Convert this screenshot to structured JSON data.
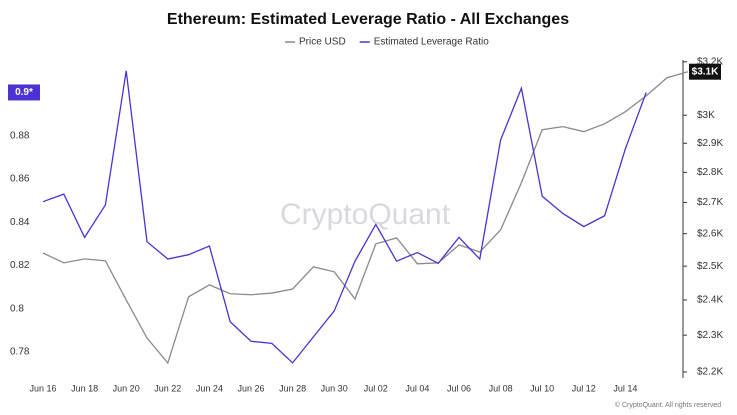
{
  "chart_data": {
    "type": "line",
    "title": "Ethereum: Estimated Leverage Ratio - All Exchanges",
    "watermark": "CryptoQuant",
    "footer": "© CryptoQuant. All rights reserved",
    "categories": [
      "Jun 16",
      null,
      "Jun 18",
      null,
      "Jun 20",
      null,
      "Jun 22",
      null,
      "Jun 24",
      null,
      "Jun 26",
      null,
      "Jun 28",
      null,
      "Jun 30",
      null,
      "Jul 02",
      null,
      "Jul 04",
      null,
      "Jul 06",
      null,
      "Jul 08",
      null,
      "Jul 10",
      null,
      "Jul 12",
      null,
      "Jul 14",
      null,
      null,
      null
    ],
    "series": [
      {
        "name": "Price USD",
        "color": "#8a8a8a",
        "axis": "y2",
        "current_label": "$3.1K",
        "current_color": "#111111",
        "values": [
          2540,
          2510,
          2522,
          2516,
          2400,
          2292,
          2224,
          2409,
          2444,
          2418,
          2415,
          2420,
          2432,
          2498,
          2483,
          2403,
          2568,
          2587,
          2507,
          2510,
          2565,
          2543,
          2612,
          2765,
          2948,
          2959,
          2941,
          2969,
          3013,
          3071,
          3139,
          3162
        ]
      },
      {
        "name": "Estimated Leverage Ratio",
        "color": "#4b32d4",
        "current_label": "0.9*",
        "current_color": "#4b32d4",
        "values": [
          0.8495,
          0.853,
          0.833,
          0.848,
          0.91,
          0.831,
          0.823,
          0.825,
          0.829,
          0.794,
          0.785,
          0.784,
          0.775,
          0.787,
          0.799,
          0.822,
          0.839,
          0.822,
          0.826,
          0.821,
          0.833,
          0.823,
          0.878,
          0.902,
          0.852,
          0.844,
          0.838,
          0.843,
          0.874,
          0.9,
          null,
          null
        ]
      }
    ],
    "ylim": [
      0.768,
      0.915
    ],
    "yticks": [
      0.78,
      0.8,
      0.82,
      0.84,
      0.86,
      0.88
    ],
    "y2lim": [
      2184,
      3207
    ],
    "y2_log": true,
    "y2ticks": [
      {
        "value": 2200,
        "label": "$2.2K"
      },
      {
        "value": 2300,
        "label": "$2.3K"
      },
      {
        "value": 2400,
        "label": "$2.4K"
      },
      {
        "value": 2500,
        "label": "$2.5K"
      },
      {
        "value": 2600,
        "label": "$2.6K"
      },
      {
        "value": 2700,
        "label": "$2.7K"
      },
      {
        "value": 2800,
        "label": "$2.8K"
      },
      {
        "value": 2900,
        "label": "$2.9K"
      },
      {
        "value": 3000,
        "label": "$3K"
      },
      {
        "value": 3200,
        "label": "$3.2K"
      }
    ],
    "grid": false
  }
}
